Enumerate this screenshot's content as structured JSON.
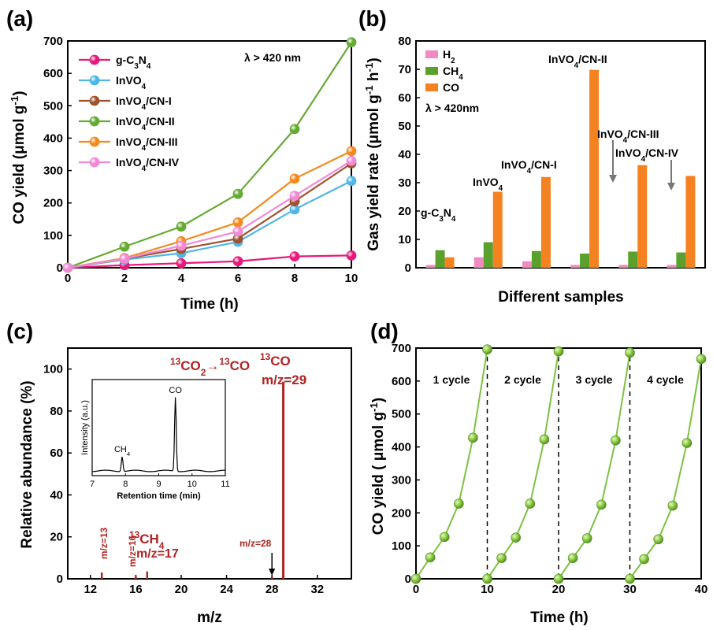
{
  "panel_labels": {
    "a": "(a)",
    "b": "(b)",
    "c": "(c)",
    "d": "(d)"
  },
  "chart_data": [
    {
      "id": "a",
      "type": "line",
      "xlabel": "Time (h)",
      "ylabel": "CO yield (μmol g⁻¹)",
      "xlim": [
        0,
        10
      ],
      "ylim": [
        0,
        700
      ],
      "xticks": [
        0,
        2,
        4,
        6,
        8,
        10
      ],
      "yticks": [
        0,
        100,
        200,
        300,
        400,
        500,
        600,
        700
      ],
      "annotation": "λ > 420 nm",
      "x": [
        0,
        2,
        4,
        6,
        8,
        10
      ],
      "series": [
        {
          "name": "g-C3N4",
          "color": "#e8197a",
          "values": [
            0,
            8,
            14,
            20,
            35,
            38
          ]
        },
        {
          "name": "InVO4",
          "color": "#4fb6e6",
          "values": [
            0,
            25,
            45,
            80,
            180,
            268
          ]
        },
        {
          "name": "InVO4/CN-I",
          "color": "#a0522d",
          "values": [
            0,
            28,
            58,
            90,
            205,
            322
          ]
        },
        {
          "name": "InVO4/CN-II",
          "color": "#66aa33",
          "values": [
            0,
            65,
            127,
            228,
            428,
            696
          ]
        },
        {
          "name": "InVO4/CN-III",
          "color": "#f28a1e",
          "values": [
            0,
            30,
            82,
            140,
            275,
            360
          ]
        },
        {
          "name": "InVO4/CN-IV",
          "color": "#f08ad6",
          "values": [
            0,
            28,
            68,
            112,
            222,
            330
          ]
        }
      ]
    },
    {
      "id": "b",
      "type": "bar",
      "xlabel": "Different samples",
      "ylabel": "Gas yield rate (μmol g⁻¹ h⁻¹)",
      "ylim": [
        0,
        80
      ],
      "yticks": [
        0,
        10,
        20,
        30,
        40,
        50,
        60,
        70,
        80
      ],
      "annotation": "λ > 420nm",
      "categories": [
        "g-C3N4",
        "InVO4",
        "InVO4/CN-I",
        "InVO4/CN-II",
        "InVO4/CN-III",
        "InVO4/CN-IV"
      ],
      "series": [
        {
          "name": "H2",
          "color": "#f28ac3",
          "values": [
            1.0,
            3.7,
            2.3,
            1.0,
            1.0,
            1.0
          ]
        },
        {
          "name": "CH4",
          "color": "#5aa02c",
          "values": [
            6.2,
            9.0,
            5.9,
            5.0,
            5.7,
            5.4
          ]
        },
        {
          "name": "CO",
          "color": "#f58220",
          "values": [
            3.7,
            26.8,
            32.0,
            69.8,
            36.2,
            32.4
          ]
        }
      ]
    },
    {
      "id": "c",
      "type": "bar",
      "xlabel": "m/z",
      "ylabel": "Relative abundance (%)",
      "xlim": [
        10,
        35
      ],
      "ylim": [
        0,
        110
      ],
      "xticks": [
        12,
        16,
        20,
        24,
        28,
        32
      ],
      "yticks": [
        0,
        20,
        40,
        60,
        80,
        100
      ],
      "peaks": [
        {
          "mz": 13,
          "abundance": 3,
          "label": "m/z=13"
        },
        {
          "mz": 16,
          "abundance": 1.5,
          "label": "m/z=16"
        },
        {
          "mz": 17,
          "abundance": 3.5,
          "label": "m/z=17"
        },
        {
          "mz": 28,
          "abundance": 1,
          "label": "m/z=28"
        },
        {
          "mz": 29,
          "abundance": 94,
          "label": "m/z=29"
        }
      ],
      "annotations": {
        "reaction": "¹³CO₂→¹³CO",
        "co_label": "¹³CO",
        "ch4_label": "¹³CH₄"
      },
      "inset": {
        "type": "line",
        "xlabel": "Retention time (min)",
        "ylabel": "Intensity (a.u.)",
        "xlim": [
          7,
          11
        ],
        "xticks": [
          7,
          8,
          9,
          10,
          11
        ],
        "peaks": [
          {
            "label": "CH4",
            "x": 7.9,
            "height": 0.2
          },
          {
            "label": "CO",
            "x": 9.5,
            "height": 1.0
          }
        ]
      }
    },
    {
      "id": "d",
      "type": "line",
      "xlabel": "Time (h)",
      "ylabel": "CO yield ( μmol g⁻¹)",
      "xlim": [
        0,
        40
      ],
      "ylim": [
        0,
        700
      ],
      "xticks": [
        0,
        10,
        20,
        30,
        40
      ],
      "yticks": [
        0,
        100,
        200,
        300,
        400,
        500,
        600,
        700
      ],
      "cycle_labels": [
        "1 cycle",
        "2 cycle",
        "3 cycle",
        "4 cycle"
      ],
      "color": "#7cc242",
      "cycles": [
        {
          "x": [
            0,
            2,
            4,
            6,
            8,
            10
          ],
          "values": [
            0,
            65,
            127,
            228,
            428,
            696
          ]
        },
        {
          "x": [
            10,
            12,
            14,
            16,
            18,
            20
          ],
          "values": [
            0,
            63,
            125,
            228,
            423,
            690
          ]
        },
        {
          "x": [
            20,
            22,
            24,
            26,
            28,
            30
          ],
          "values": [
            0,
            63,
            123,
            225,
            420,
            686
          ]
        },
        {
          "x": [
            30,
            32,
            34,
            36,
            38,
            40
          ],
          "values": [
            0,
            60,
            120,
            222,
            412,
            667
          ]
        }
      ]
    }
  ]
}
